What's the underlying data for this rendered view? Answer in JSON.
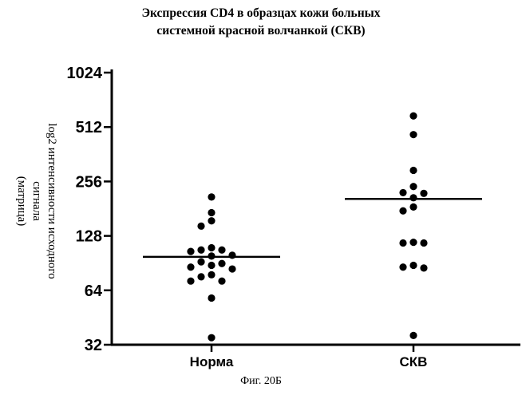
{
  "chart_data": {
    "type": "scatter",
    "title_lines": [
      "Экспрессия CD4 в образцах кожи больных",
      "системной красной волчанкой (СКВ)"
    ],
    "ylabel_lines": [
      "log2 интенсивности исходного",
      "сигнала",
      "(матрица)"
    ],
    "xlabel": "",
    "y_scale": "log2",
    "ylim": [
      32,
      1024
    ],
    "yticks": [
      32,
      64,
      128,
      256,
      512,
      1024
    ],
    "ytick_labels": [
      "32",
      "64",
      "128",
      "256",
      "512",
      "1024"
    ],
    "grid": false,
    "categories": [
      "Норма",
      "СКВ"
    ],
    "series": [
      {
        "category": "Норма",
        "median": 98,
        "points": [
          210,
          172,
          155,
          145,
          110,
          107,
          107,
          105,
          100,
          99,
          92,
          90,
          88,
          86,
          84,
          78,
          76,
          72,
          72,
          58,
          35
        ]
      },
      {
        "category": "СКВ",
        "median": 205,
        "points": [
          590,
          465,
          295,
          240,
          222,
          220,
          208,
          185,
          176,
          118,
          117,
          117,
          88,
          86,
          85,
          36
        ]
      }
    ]
  },
  "caption": "Фиг. 20Б",
  "colors": {
    "ink": "#000000"
  }
}
